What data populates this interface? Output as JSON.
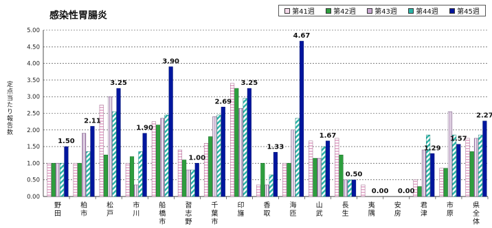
{
  "chart_data": {
    "type": "bar",
    "title": "感染性胃腸炎",
    "ylabel": "定点当たり報告数",
    "ylim": [
      0,
      5
    ],
    "yticks": [
      "0.00",
      "0.50",
      "1.00",
      "1.50",
      "2.00",
      "2.50",
      "3.00",
      "3.50",
      "4.00",
      "4.50",
      "5.00"
    ],
    "legend_position": "top-right",
    "categories": [
      "野田",
      "柏市",
      "松戸",
      "市川",
      "船橋市",
      "習志野",
      "千葉市",
      "印旛",
      "香取",
      "海匝",
      "山武",
      "長生",
      "夷隅",
      "安房",
      "君津",
      "市原",
      "県全体"
    ],
    "series": [
      {
        "name": "第41週",
        "values": [
          1.0,
          1.0,
          2.75,
          1.0,
          2.25,
          1.4,
          1.6,
          3.4,
          0.35,
          1.0,
          1.67,
          1.75,
          0.35,
          0.0,
          0.5,
          0.85,
          1.75
        ]
      },
      {
        "name": "第42週",
        "values": [
          1.0,
          1.0,
          1.25,
          1.2,
          2.15,
          1.1,
          1.8,
          3.25,
          1.0,
          1.0,
          1.15,
          1.25,
          0.0,
          0.0,
          0.3,
          0.85,
          1.35
        ]
      },
      {
        "name": "第43週",
        "values": [
          1.0,
          1.9,
          3.0,
          0.35,
          2.35,
          0.8,
          2.4,
          2.65,
          0.35,
          2.0,
          1.15,
          0.5,
          0.0,
          0.0,
          1.4,
          2.55,
          1.75
        ]
      },
      {
        "name": "第44週",
        "values": [
          1.0,
          1.35,
          2.55,
          1.35,
          2.45,
          0.8,
          2.45,
          2.95,
          0.65,
          2.35,
          1.5,
          0.5,
          0.0,
          0.0,
          1.85,
          1.85,
          1.85
        ]
      },
      {
        "name": "第45週",
        "values": [
          1.5,
          2.11,
          3.25,
          1.9,
          3.9,
          1.0,
          2.69,
          3.25,
          1.33,
          4.67,
          1.67,
          0.5,
          0.0,
          0.0,
          1.29,
          1.57,
          2.27
        ]
      }
    ],
    "data_labels": [
      "1.50",
      "2.11",
      "3.25",
      "1.90",
      "3.90",
      "1.00",
      "2.69",
      "3.25",
      "1.33",
      "4.67",
      "1.67",
      "0.50",
      "0.00",
      "0.00",
      "1.29",
      "1.57",
      "2.27"
    ]
  },
  "colors": {
    "s41": "#f5d9ea",
    "s42": "#2e9e3e",
    "s43": "#c8a6cf",
    "s44": "#2bb5a8",
    "s45": "#00169e",
    "grid": "#222222"
  }
}
